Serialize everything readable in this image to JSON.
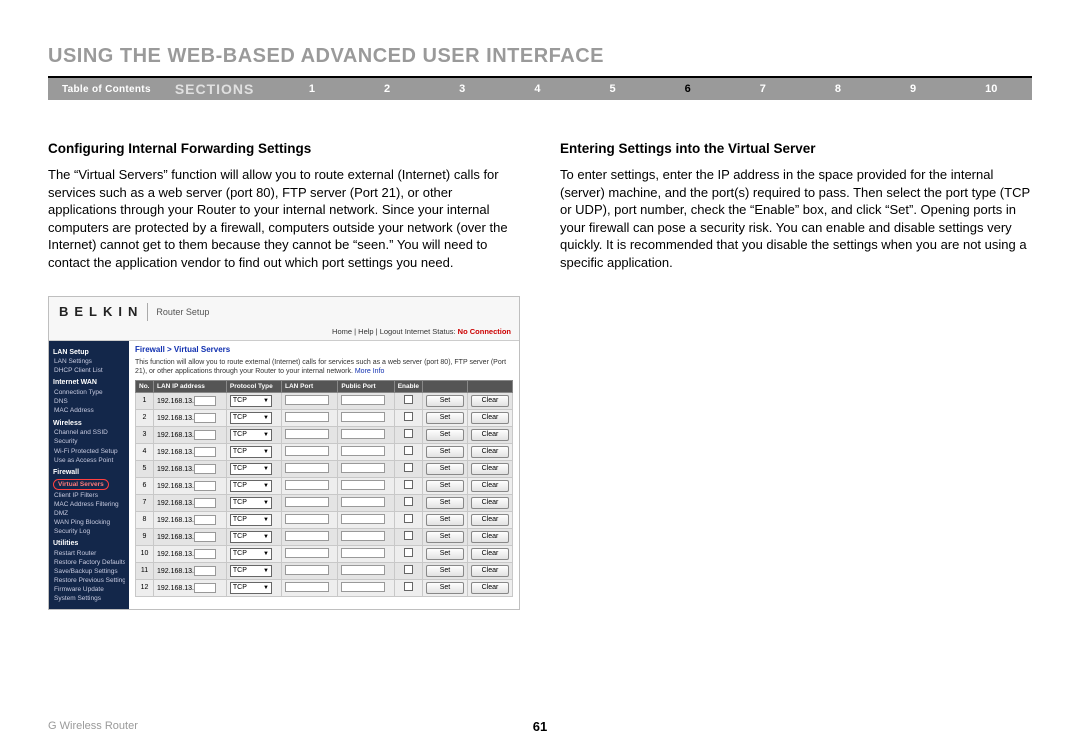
{
  "page": {
    "title": "USING THE WEB-BASED ADVANCED USER INTERFACE",
    "footer_left": "G Wireless Router",
    "page_number": "61"
  },
  "nav": {
    "toc": "Table of Contents",
    "sections_label": "SECTIONS",
    "numbers": [
      "1",
      "2",
      "3",
      "4",
      "5",
      "6",
      "7",
      "8",
      "9",
      "10"
    ],
    "active_index": 5
  },
  "left_col": {
    "heading": "Configuring Internal Forwarding Settings",
    "body": "The “Virtual Servers” function will allow you to route external (Internet) calls for services such as a web server (port 80), FTP server (Port 21), or other applications through your Router to your internal network. Since your internal computers are protected by a firewall, computers outside your network (over the Internet) cannot get to them because they cannot be “seen.” You will need to contact the application vendor to find out which port settings you need."
  },
  "right_col": {
    "heading": "Entering Settings into the Virtual Server",
    "body": "To enter settings, enter the IP address in the space provided for the internal (server) machine, and the port(s) required to pass. Then select the port type (TCP or UDP), port number, check the “Enable” box, and click “Set”. Opening ports in your firewall can pose a security risk. You can enable and disable settings very quickly. It is recommended that you disable the settings when you are not using a specific application."
  },
  "screenshot": {
    "brand": "BELKIN",
    "brand_sub": "Router Setup",
    "linkbar_prefix": "Home | Help | Logout   Internet Status: ",
    "linkbar_status": "No Connection",
    "breadcrumb": "Firewall > Virtual Servers",
    "desc_main": "This function will allow you to route external (Internet) calls for services such as a web server (port 80), FTP server (Port 21), or other applications through your Router to your internal network. ",
    "desc_more": "More Info",
    "sidebar": {
      "groups": [
        {
          "header": "LAN Setup",
          "items": [
            "LAN Settings",
            "DHCP Client List"
          ]
        },
        {
          "header": "Internet WAN",
          "items": [
            "Connection Type",
            "DNS",
            "MAC Address"
          ]
        },
        {
          "header": "Wireless",
          "items": [
            "Channel and SSID",
            "Security",
            "Wi-Fi Protected Setup",
            "Use as Access Point"
          ]
        },
        {
          "header": "Firewall",
          "items": [
            "Virtual Servers",
            "Client IP Filters",
            "MAC Address Filtering",
            "DMZ",
            "WAN Ping Blocking",
            "Security Log"
          ],
          "highlight_index": 0
        },
        {
          "header": "Utilities",
          "items": [
            "Restart Router",
            "Restore Factory Defaults",
            "Save/Backup Settings",
            "Restore Previous Settings",
            "Firmware Update",
            "System Settings"
          ]
        }
      ]
    },
    "table": {
      "columns": [
        "No.",
        "LAN IP address",
        "Protocol Type",
        "LAN Port",
        "Public Port",
        "Enable",
        "",
        ""
      ],
      "ip_prefix": "192.168.13.",
      "protocol": "TCP",
      "set_label": "Set",
      "clear_label": "Clear",
      "row_count": 12
    }
  }
}
